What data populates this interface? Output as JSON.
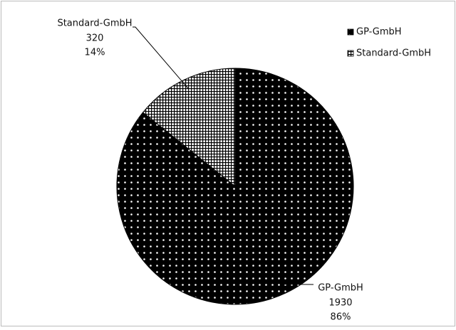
{
  "chart_data": {
    "type": "pie",
    "categories": [
      "GP-GmbH",
      "Standard-GmbH"
    ],
    "values": [
      1930,
      320
    ],
    "percentages": [
      86,
      14
    ],
    "percentage_labels": [
      "86%",
      "14%"
    ],
    "legend": "top-right"
  }
}
